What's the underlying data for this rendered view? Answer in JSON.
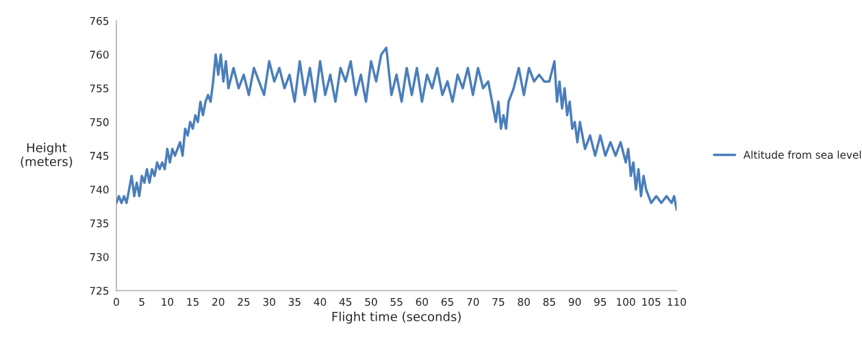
{
  "chart_data": {
    "type": "line",
    "xlabel": "Flight time (seconds)",
    "ylabel": "Height\n(meters)",
    "x": [
      0,
      0.5,
      1,
      1.5,
      2,
      2.5,
      3,
      3.5,
      4,
      4.5,
      5,
      5.5,
      6,
      6.5,
      7,
      7.5,
      8,
      8.5,
      9,
      9.5,
      10,
      10.5,
      11,
      11.5,
      12,
      12.5,
      13,
      13.5,
      14,
      14.5,
      15,
      15.5,
      16,
      16.5,
      17,
      17.5,
      18,
      18.5,
      19,
      19.5,
      20,
      20.5,
      21,
      21.5,
      22,
      23,
      24,
      25,
      26,
      27,
      28,
      29,
      30,
      31,
      32,
      33,
      34,
      35,
      36,
      37,
      38,
      39,
      40,
      41,
      42,
      43,
      44,
      45,
      46,
      47,
      48,
      49,
      50,
      51,
      52,
      53,
      54,
      55,
      56,
      57,
      58,
      59,
      60,
      61,
      62,
      63,
      64,
      65,
      66,
      67,
      68,
      69,
      70,
      71,
      72,
      73,
      74,
      74.5,
      75,
      75.5,
      76,
      76.5,
      77,
      78,
      79,
      80,
      81,
      82,
      83,
      84,
      85,
      86,
      86.5,
      87,
      87.5,
      88,
      88.5,
      89,
      89.5,
      90,
      90.5,
      91,
      92,
      93,
      94,
      95,
      96,
      97,
      98,
      99,
      100,
      100.5,
      101,
      101.5,
      102,
      102.5,
      103,
      103.5,
      104,
      105,
      106,
      107,
      108,
      109,
      109.5,
      110
    ],
    "series": [
      {
        "name": "Altitude from sea level",
        "color": "#4a7ebb",
        "values": [
          738,
          739,
          738,
          739,
          738,
          740,
          742,
          739,
          741,
          739,
          742,
          741,
          743,
          741,
          743,
          742,
          744,
          743,
          744,
          743,
          746,
          744,
          746,
          745,
          746,
          747,
          745,
          749,
          748,
          750,
          749,
          751,
          750,
          753,
          751,
          753,
          754,
          753,
          756,
          760,
          757,
          760,
          756,
          759,
          755,
          758,
          755,
          757,
          754,
          758,
          756,
          754,
          759,
          756,
          758,
          755,
          757,
          753,
          759,
          754,
          758,
          753,
          759,
          754,
          757,
          753,
          758,
          756,
          759,
          754,
          757,
          753,
          759,
          756,
          760,
          761,
          754,
          757,
          753,
          758,
          754,
          758,
          753,
          757,
          755,
          758,
          754,
          756,
          753,
          757,
          755,
          758,
          754,
          758,
          755,
          756,
          752,
          750,
          753,
          749,
          751,
          749,
          753,
          755,
          758,
          754,
          758,
          756,
          757,
          756,
          756,
          759,
          753,
          756,
          752,
          755,
          751,
          753,
          749,
          750,
          747,
          750,
          746,
          748,
          745,
          748,
          745,
          747,
          745,
          747,
          744,
          746,
          742,
          744,
          740,
          743,
          739,
          742,
          740,
          738,
          739,
          738,
          739,
          738,
          739,
          737
        ]
      }
    ],
    "xlim": [
      0,
      110
    ],
    "xticks": [
      0,
      5,
      10,
      15,
      20,
      25,
      30,
      35,
      40,
      45,
      50,
      55,
      60,
      65,
      70,
      75,
      80,
      85,
      90,
      95,
      100,
      105,
      110
    ],
    "ylim": [
      725,
      765
    ],
    "yticks": [
      725,
      730,
      735,
      740,
      745,
      750,
      755,
      760,
      765
    ],
    "grid": false,
    "legend": "right",
    "marker": "none",
    "line_style": "solid"
  }
}
